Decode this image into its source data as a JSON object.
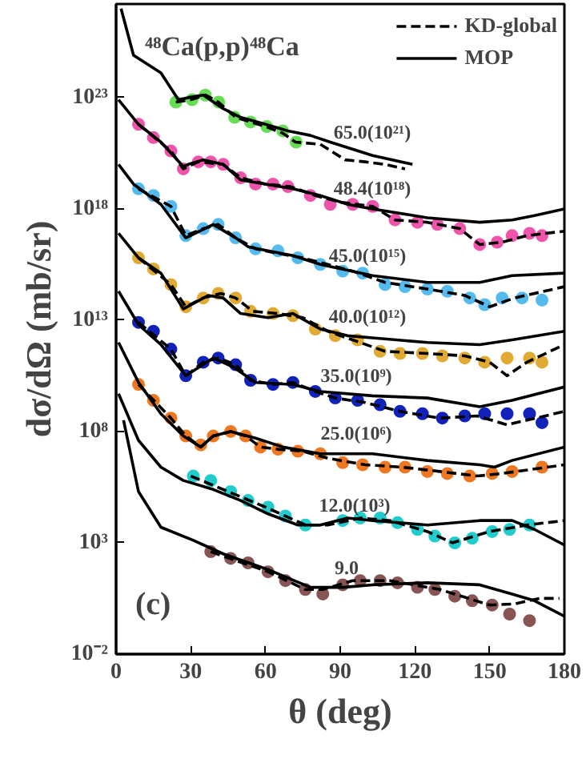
{
  "chart_data": {
    "type": "line",
    "title": "⁴⁸Ca(p,p)⁴⁸Ca",
    "xlabel": "θ (deg)",
    "ylabel": "dσ/dΩ (mb/sr)",
    "log": "y",
    "xlim": [
      0,
      180
    ],
    "ylim": [
      0.01,
      1.6e+27
    ],
    "xticks": [
      0,
      30,
      60,
      90,
      120,
      150,
      180
    ],
    "yticks": [
      {
        "value": 0.01,
        "label": "10⁻²"
      },
      {
        "value": 1000,
        "label": "10³"
      },
      {
        "value": 100000000.0,
        "label": "10⁸"
      },
      {
        "value": 10000000000000.0,
        "label": "10¹³"
      },
      {
        "value": 1e+18,
        "label": "10¹⁸"
      },
      {
        "value": 1e+23,
        "label": "10²³"
      }
    ],
    "grid": false,
    "legend": "top right",
    "series": [
      {
        "type": "scatter",
        "marker": "circle",
        "color": "#66dd55",
        "x": [
          24,
          30.5,
          35.8,
          41.2,
          47.6,
          54,
          60.5,
          66.9,
          72.3
        ],
        "values": [
          6.3e+22,
          8e+22,
          1.3e+23,
          6.3e+22,
          1.3e+22,
          8e+21,
          5e+21,
          3.2e+21,
          1e+21
        ]
      },
      {
        "name": "KD-global",
        "line_style": "dashed",
        "color": "#000000",
        "x": [
          24,
          30,
          36,
          41,
          48,
          54,
          60,
          67,
          72,
          82,
          92,
          100,
          108,
          116
        ],
        "values": [
          6.3e+22,
          8e+22,
          1.3e+23,
          6.3e+22,
          1.3e+22,
          8e+21,
          5e+21,
          2.5e+21,
          1e+21,
          8e+20,
          1.6e+20,
          1.3e+20,
          1e+20,
          6.3e+19
        ]
      },
      {
        "name": "MOP",
        "line_style": "solid",
        "color": "#000000",
        "x": [
          2,
          7,
          18,
          25,
          29,
          35,
          43,
          50,
          60,
          69,
          78,
          86,
          103,
          119
        ],
        "values": [
          1e+27,
          8e+24,
          1.3e+24,
          8e+22,
          1e+23,
          1.3e+23,
          3.2e+22,
          1.3e+22,
          6.3e+21,
          3.2e+21,
          2e+21,
          1e+21,
          2.5e+20,
          1e+20
        ]
      },
      {
        "type": "scatter",
        "marker": "circle",
        "color": "#ee55aa",
        "x": [
          9,
          15,
          22,
          27,
          33,
          38,
          43,
          50,
          56,
          63,
          69,
          78,
          86,
          95,
          103,
          112,
          121,
          129,
          138,
          146,
          153,
          159,
          166,
          171
        ],
        "values": [
          6.3e+21,
          1.6e+21,
          4e+20,
          6.3e+19,
          1.3e+20,
          1.3e+20,
          1e+20,
          2.5e+19,
          1.3e+19,
          1.3e+19,
          1e+19,
          4e+18,
          1.6e+18,
          1.6e+18,
          1.3e+18,
          3.2e+17,
          2.5e+17,
          2e+17,
          1.3e+17,
          2.5e+16,
          3.2e+16,
          6.3e+16,
          8e+16,
          6.3e+16
        ]
      },
      {
        "line_style": "dashed",
        "color": "#000000",
        "x": [
          9,
          22,
          27,
          33,
          43,
          50,
          60,
          70,
          80,
          90,
          103,
          112,
          125,
          138,
          146,
          155,
          165,
          180
        ],
        "values": [
          6.3e+21,
          4e+20,
          6.3e+19,
          1.3e+20,
          1e+20,
          2.5e+19,
          1.3e+19,
          1e+19,
          4e+18,
          2e+18,
          1.3e+18,
          3.2e+17,
          2.5e+17,
          1.3e+17,
          2.5e+16,
          3.2e+16,
          6.3e+16,
          1e+17
        ]
      },
      {
        "line_style": "solid",
        "color": "#000000",
        "x": [
          1,
          9,
          18,
          27,
          29,
          35,
          43,
          50,
          60,
          71,
          82,
          93,
          103,
          125,
          146,
          159,
          168,
          180
        ],
        "values": [
          8e+22,
          6.3e+21,
          1e+21,
          8e+19,
          1e+20,
          1.6e+20,
          1e+20,
          2e+19,
          1.3e+19,
          8e+18,
          4e+18,
          1.6e+18,
          1e+18,
          4e+17,
          2.5e+17,
          3.2e+17,
          5e+17,
          1e+18
        ]
      },
      {
        "type": "scatter",
        "marker": "circle",
        "color": "#55bbee",
        "x": [
          9,
          15,
          22,
          28,
          35,
          41,
          48,
          56,
          65,
          73,
          82,
          91,
          99,
          108,
          116,
          125,
          133,
          142,
          148,
          155,
          163,
          171
        ],
        "values": [
          8e+18,
          4e+18,
          1.3e+18,
          6.3e+16,
          1.3e+17,
          2e+17,
          5e+16,
          1.6e+16,
          1.3e+16,
          6300000000000000.0,
          3200000000000000.0,
          1600000000000000.0,
          1300000000000000.0,
          400000000000000.0,
          320000000000000.0,
          250000000000000.0,
          200000000000000.0,
          100000000000000.0,
          50000000000000.0,
          100000000000000.0,
          100000000000000.0,
          80000000000000.0
        ]
      },
      {
        "line_style": "dashed",
        "color": "#000000",
        "x": [
          9,
          22,
          28,
          35,
          41,
          48,
          56,
          65,
          75,
          85,
          95,
          108,
          125,
          140,
          150,
          160,
          180
        ],
        "values": [
          8e+18,
          1.3e+18,
          6.3e+16,
          1.3e+17,
          2e+17,
          5e+16,
          1.6e+16,
          1e+16,
          6300000000000000.0,
          3200000000000000.0,
          1600000000000000.0,
          500000000000000.0,
          250000000000000.0,
          130000000000000.0,
          40000000000000.0,
          100000000000000.0,
          320000000000000.0
        ]
      },
      {
        "line_style": "solid",
        "color": "#000000",
        "x": [
          1,
          7,
          18,
          28,
          39,
          48,
          53,
          61,
          71,
          82,
          103,
          125,
          146,
          159,
          180
        ],
        "values": [
          1e+20,
          1.3e+19,
          1.6e+18,
          5e+16,
          2e+17,
          5e+16,
          2e+16,
          1.3e+16,
          8000000000000000.0,
          3200000000000000.0,
          1000000000000000.0,
          500000000000000.0,
          500000000000000.0,
          1000000000000000.0,
          1300000000000000.0
        ]
      },
      {
        "type": "scatter",
        "marker": "circle",
        "color": "#e0aa33",
        "x": [
          9,
          15,
          22,
          28,
          35,
          41,
          48,
          54,
          63,
          71,
          80,
          88,
          97,
          106,
          114,
          123,
          131,
          140,
          148,
          157,
          166,
          171
        ],
        "values": [
          6300000000000000.0,
          2000000000000000.0,
          400000000000000.0,
          40000000000000.0,
          100000000000000.0,
          160000000000000.0,
          100000000000000.0,
          25000000000000.0,
          20000000000000.0,
          16000000000000.0,
          4000000000000.0,
          2000000000000.0,
          1300000000000.0,
          400000000000.0,
          320000000000.0,
          320000000000.0,
          250000000000.0,
          200000000000.0,
          130000000000.0,
          200000000000.0,
          200000000000.0,
          130000000000.0
        ]
      },
      {
        "line_style": "dashed",
        "color": "#000000",
        "x": [
          9,
          22,
          28,
          35,
          42,
          48,
          55,
          65,
          75,
          85,
          95,
          108,
          125,
          140,
          150,
          157,
          165,
          180
        ],
        "values": [
          6300000000000000.0,
          400000000000000.0,
          40000000000000.0,
          100000000000000.0,
          160000000000000.0,
          100000000000000.0,
          25000000000000.0,
          20000000000000.0,
          13000000000000.0,
          3200000000000.0,
          1300000000000.0,
          400000000000.0,
          320000000000.0,
          250000000000.0,
          130000000000.0,
          32000000000.0,
          130000000000.0,
          800000000000.0
        ]
      },
      {
        "line_style": "solid",
        "color": "#000000",
        "x": [
          1,
          9,
          18,
          27,
          37,
          43,
          50,
          61,
          71,
          82,
          93,
          103,
          125,
          146,
          159,
          180
        ],
        "values": [
          8e+16,
          6300000000000000.0,
          1300000000000000.0,
          32000000000000.0,
          130000000000000.0,
          100000000000000.0,
          20000000000000.0,
          13000000000000.0,
          20000000000000.0,
          4000000000000.0,
          2000000000000.0,
          1600000000000.0,
          1000000000000.0,
          800000000000.0,
          1300000000000.0,
          3200000000000.0
        ]
      },
      {
        "type": "scatter",
        "marker": "circle",
        "color": "#1122bb",
        "x": [
          9,
          15,
          22,
          28,
          35,
          41,
          48,
          54,
          63,
          71,
          80,
          88,
          97,
          106,
          114,
          123,
          131,
          140,
          148,
          157,
          166,
          171
        ],
        "values": [
          8000000000000.0,
          3200000000000.0,
          500000000000.0,
          32000000000.0,
          130000000000.0,
          200000000000.0,
          100000000000.0,
          20000000000.0,
          13000000000.0,
          16000000000.0,
          6300000000.0,
          3200000000.0,
          2500000000.0,
          1600000000.0,
          800000000.0,
          630000000.0,
          400000000.0,
          500000000.0,
          630000000.0,
          630000000.0,
          630000000.0,
          250000000.0
        ]
      },
      {
        "line_style": "dashed",
        "color": "#000000",
        "x": [
          9,
          22,
          28,
          35,
          41,
          48,
          54,
          63,
          71,
          80,
          88,
          100,
          114,
          130,
          145,
          157,
          180
        ],
        "values": [
          8000000000000.0,
          500000000000.0,
          32000000000.0,
          130000000000.0,
          200000000000.0,
          100000000000.0,
          20000000000.0,
          13000000000.0,
          16000000000.0,
          6300000000.0,
          3200000000.0,
          2000000000.0,
          800000000.0,
          400000000.0,
          500000000.0,
          200000000.0,
          800000000.0
        ]
      },
      {
        "line_style": "solid",
        "color": "#000000",
        "x": [
          1,
          9,
          18,
          28,
          39,
          47,
          56,
          71,
          82,
          103,
          125,
          146,
          159,
          180
        ],
        "values": [
          200000000000000.0,
          6300000000000.0,
          800000000000.0,
          32000000000.0,
          200000000000.0,
          80000000000.0,
          16000000000.0,
          13000000000.0,
          6300000000.0,
          4000000000.0,
          3200000000.0,
          1300000000.0,
          2500000000.0,
          10000000000.0
        ]
      },
      {
        "type": "scatter",
        "marker": "circle",
        "color": "#ee7722",
        "x": [
          9,
          15,
          22,
          28,
          34,
          39,
          46,
          52,
          58,
          65,
          73,
          82,
          91,
          99,
          108,
          116,
          125,
          133,
          142,
          151,
          159,
          171
        ],
        "values": [
          13000000000.0,
          2500000000.0,
          400000000.0,
          63000000.0,
          25000000.0,
          63000000.0,
          100000000.0,
          63000000.0,
          20000000.0,
          16000000.0,
          13000000.0,
          10000000.0,
          4000000.0,
          3200000.0,
          2500000.0,
          2500000.0,
          1600000.0,
          1300000.0,
          1000000.0,
          1300000.0,
          1600000.0,
          2500000.0
        ]
      },
      {
        "line_style": "dashed",
        "color": "#000000",
        "x": [
          9,
          22,
          28,
          34,
          39,
          46,
          52,
          58,
          65,
          75,
          85,
          100,
          115,
          130,
          145,
          155,
          180
        ],
        "values": [
          13000000000.0,
          400000000.0,
          63000000.0,
          20000000.0,
          63000000.0,
          100000000.0,
          63000000.0,
          20000000.0,
          16000000.0,
          13000000.0,
          6300000.0,
          3200000.0,
          2500000.0,
          1600000.0,
          1000000.0,
          1300000.0,
          3200000.0
        ]
      },
      {
        "line_style": "solid",
        "color": "#000000",
        "x": [
          1,
          9,
          18,
          27,
          34,
          39,
          46,
          56,
          67,
          82,
          103,
          125,
          146,
          152,
          159,
          180
        ],
        "values": [
          1000000000000.0,
          16000000000.0,
          630000000.0,
          63000000.0,
          20000000.0,
          63000000.0,
          100000000.0,
          50000000.0,
          20000000.0,
          10000000.0,
          10000000.0,
          5000000.0,
          3200000.0,
          2500000.0,
          5000000.0,
          20000000.0
        ]
      },
      {
        "type": "scatter",
        "marker": "circle",
        "color": "#22cccc",
        "x": [
          31,
          38,
          46,
          53,
          61,
          68,
          76,
          91,
          98,
          106,
          113,
          121,
          128,
          136,
          143,
          151,
          158,
          166
        ],
        "values": [
          1000000.0,
          630000.0,
          200000.0,
          80000.0,
          40000.0,
          16000.0,
          6300.0,
          10000.0,
          13000.0,
          13000.0,
          8000.0,
          4000.0,
          2000.0,
          1000.0,
          1600.0,
          3200.0,
          4000.0,
          6300.0
        ]
      },
      {
        "line_style": "dashed",
        "color": "#000000",
        "x": [
          30,
          45,
          60,
          76,
          85,
          98,
          110,
          125,
          135,
          150,
          165,
          180
        ],
        "values": [
          1000000.0,
          200000.0,
          40000.0,
          6300.0,
          6300.0,
          13000.0,
          10000.0,
          3200.0,
          1000.0,
          3200.0,
          6300.0,
          10000.0
        ]
      },
      {
        "line_style": "solid",
        "color": "#000000",
        "x": [
          1,
          9,
          18,
          27,
          39,
          50,
          61,
          73,
          82,
          93,
          103,
          125,
          146,
          159,
          168,
          180
        ],
        "values": [
          5000000000.0,
          40000000.0,
          2500000.0,
          630000.0,
          250000.0,
          80000.0,
          20000.0,
          6300.0,
          6300.0,
          13000.0,
          10000.0,
          6300.0,
          10000.0,
          10000.0,
          4000.0,
          800.0
        ]
      },
      {
        "type": "scatter",
        "marker": "circle",
        "color": "#885555",
        "x": [
          38,
          46,
          53,
          61,
          68,
          76,
          83,
          91,
          98,
          106,
          113,
          121,
          128,
          136,
          143,
          151,
          158,
          166
        ],
        "values": [
          400,
          200,
          126,
          50,
          20,
          8,
          5,
          13,
          20,
          20,
          16,
          10,
          8,
          4,
          2.5,
          1.6,
          0.63,
          0.32
        ]
      },
      {
        "line_style": "dashed",
        "color": "#000000",
        "x": [
          38,
          61,
          76,
          83,
          95,
          110,
          130,
          150,
          160,
          170,
          178
        ],
        "values": [
          400,
          50,
          8,
          8,
          20,
          20,
          8,
          1.6,
          1.8,
          3.2,
          3.2
        ]
      },
      {
        "line_style": "solid",
        "color": "#000000",
        "x": [
          3,
          9,
          18,
          31,
          43,
          61,
          78,
          91,
          103,
          125,
          146,
          159,
          168,
          180
        ],
        "values": [
          320000000.0,
          200000.0,
          5000.0,
          1300.0,
          320.0,
          63,
          10,
          10,
          13,
          16,
          13,
          5,
          2.5,
          0.5
        ]
      }
    ],
    "annotations": [
      "65.0(10²¹)",
      "48.4(10¹⁸)",
      "45.0(10¹⁵)",
      "40.0(10¹²)",
      "35.0(10⁹)",
      "25.0(10⁶)",
      "12.0(10³)",
      "9.0",
      "(c)"
    ]
  }
}
